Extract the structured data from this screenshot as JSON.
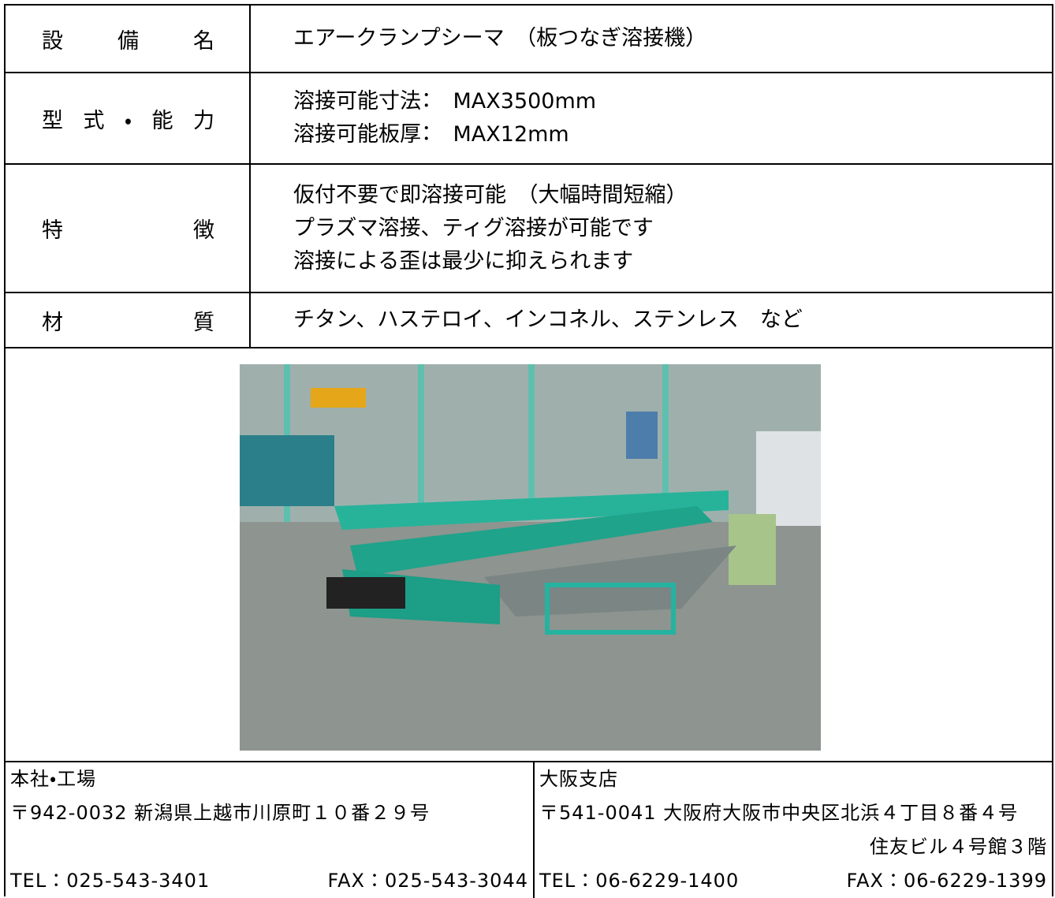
{
  "spec_table": {
    "rows": [
      {
        "label": "設備名",
        "lines": [
          "エアークランプシーマ　（板つなぎ溶接機）"
        ]
      },
      {
        "label": "型式・能力",
        "lines": [
          "溶接可能寸法：　MAX3500mm",
          "溶接可能板厚：　MAX12mm"
        ]
      },
      {
        "label": "特徴",
        "lines": [
          "仮付不要で即溶接可能　（大幅時間短縮）",
          "プラズマ溶接、ティグ溶接が可能です",
          "溶接による歪は最少に抑えられます"
        ]
      },
      {
        "label": "材質",
        "lines": [
          "チタン、ハステロイ、インコネル、ステンレス　など"
        ]
      }
    ]
  },
  "footer": {
    "head_office": {
      "title": "本社・工場",
      "address": [
        "〒942-0032 新潟県上越市川原町１０番２９号"
      ],
      "tel": "TEL：025-543-3401",
      "fax": "FAX：025-543-3044"
    },
    "osaka_branch": {
      "title": "大阪支店",
      "address": [
        "〒541-0041 大阪府大阪市中央区北浜４丁目８番４号",
        "住友ビル４号館３階"
      ],
      "tel": "TEL：06-6229-1400",
      "fax": "FAX：06-6229-1399"
    }
  }
}
